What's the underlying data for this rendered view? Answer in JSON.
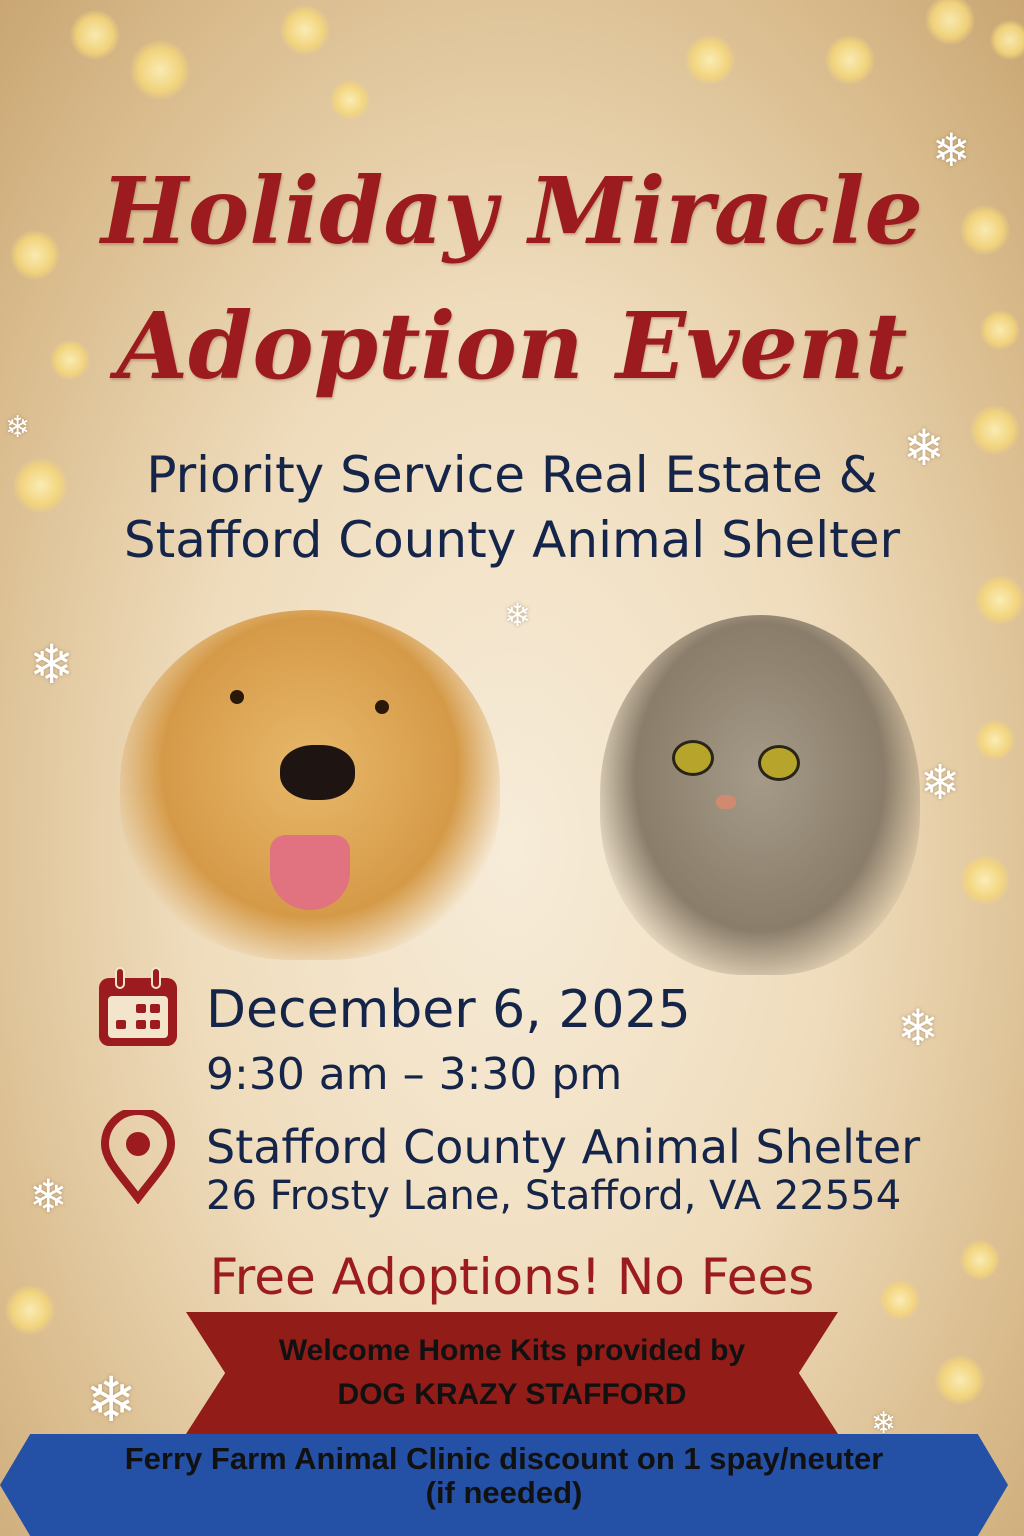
{
  "colors": {
    "title_red": "#9b1b1e",
    "navy": "#15254a",
    "banner_red": "#911c18",
    "banner_blue": "#2450a6",
    "background": "#efdcbc"
  },
  "title": {
    "line1": "Holiday Miracle",
    "line2": "Adoption Event"
  },
  "hosts": {
    "line1": "Priority Service Real Estate &",
    "line2": "Stafford County Animal Shelter"
  },
  "images": {
    "left": "golden-retriever-dog",
    "right": "tabby-cat"
  },
  "event": {
    "date": "December 6, 2025",
    "time": "9:30 am – 3:30 pm",
    "date_icon": "calendar-icon",
    "location_icon": "map-pin-icon",
    "venue": "Stafford County Animal Shelter",
    "address": "26 Frosty Lane, Stafford, VA 22554"
  },
  "offer": "Free Adoptions! No Fees",
  "red_banner": {
    "line1": "Welcome Home Kits provided by",
    "line2": "DOG KRAZY STAFFORD"
  },
  "blue_banner": {
    "line1": "Ferry Farm Animal Clinic discount on 1 spay/neuter",
    "line2": "(if needed)"
  }
}
